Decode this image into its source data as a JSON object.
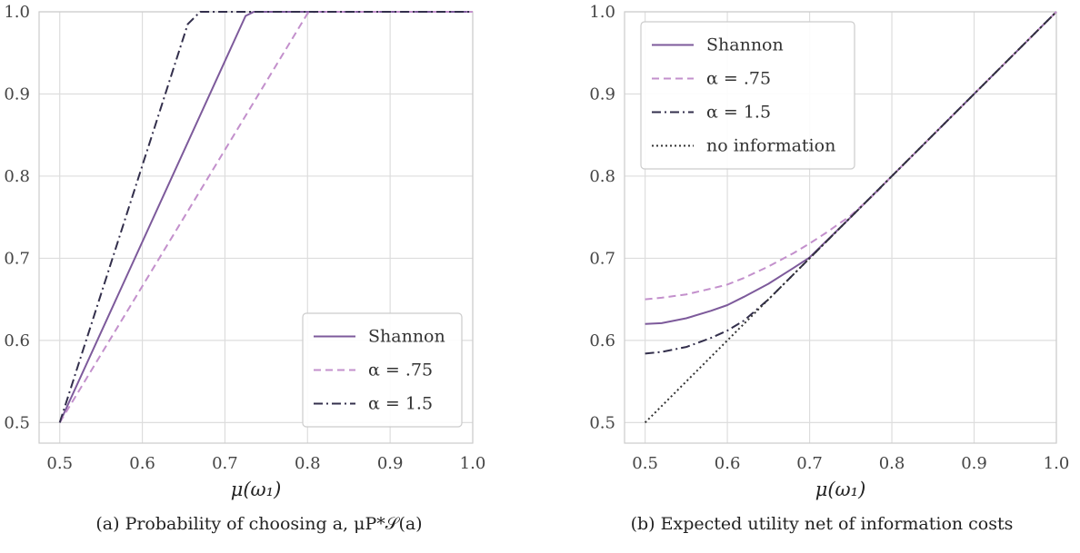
{
  "chart_data": [
    {
      "type": "line",
      "xlabel": "μ(ω₁)",
      "ylabel": "",
      "xlim": [
        0.475,
        1.0
      ],
      "ylim": [
        0.475,
        1.0
      ],
      "xticks": [
        "0.5",
        "0.6",
        "0.7",
        "0.8",
        "0.9",
        "1.0"
      ],
      "yticks": [
        "0.5",
        "0.6",
        "0.7",
        "0.8",
        "0.9",
        "1.0"
      ],
      "grid": true,
      "legend_position": "bottom-right",
      "caption": "(a) Probability of choosing a, μP*𝒮(a)",
      "series": [
        {
          "name": "Shannon",
          "style": "solid",
          "color": "#7d5a9b",
          "x": [
            0.5,
            0.725,
            0.735,
            0.75,
            1.0
          ],
          "y": [
            0.5,
            0.995,
            1.0,
            1.0,
            1.0
          ]
        },
        {
          "name": "α = .75",
          "style": "dashed",
          "color": "#c390cc",
          "x": [
            0.5,
            0.8,
            0.81,
            1.0
          ],
          "y": [
            0.5,
            0.998,
            1.0,
            1.0
          ]
        },
        {
          "name": "α = 1.5",
          "style": "dashdot",
          "color": "#332f4c",
          "x": [
            0.5,
            0.655,
            0.67,
            0.68,
            1.0
          ],
          "y": [
            0.5,
            0.985,
            1.0,
            1.0,
            1.0
          ]
        }
      ]
    },
    {
      "type": "line",
      "xlabel": "μ(ω₁)",
      "ylabel": "",
      "xlim": [
        0.475,
        1.0
      ],
      "ylim": [
        0.475,
        1.0
      ],
      "xticks": [
        "0.5",
        "0.6",
        "0.7",
        "0.8",
        "0.9",
        "1.0"
      ],
      "yticks": [
        "0.5",
        "0.6",
        "0.7",
        "0.8",
        "0.9",
        "1.0"
      ],
      "grid": true,
      "legend_position": "top-left",
      "caption": "(b) Expected utility net of information costs",
      "series": [
        {
          "name": "Shannon",
          "style": "solid",
          "color": "#7d5a9b",
          "x": [
            0.5,
            0.52,
            0.55,
            0.58,
            0.6,
            0.62,
            0.65,
            0.68,
            0.7,
            0.75,
            0.8,
            0.9,
            1.0
          ],
          "y": [
            0.62,
            0.621,
            0.627,
            0.636,
            0.643,
            0.653,
            0.669,
            0.688,
            0.701,
            0.75,
            0.8,
            0.9,
            1.0
          ]
        },
        {
          "name": "α = .75",
          "style": "dashed",
          "color": "#c390cc",
          "x": [
            0.5,
            0.52,
            0.55,
            0.58,
            0.6,
            0.62,
            0.65,
            0.68,
            0.7,
            0.72,
            0.75,
            0.78,
            0.8,
            0.9,
            1.0
          ],
          "y": [
            0.65,
            0.652,
            0.656,
            0.663,
            0.668,
            0.676,
            0.69,
            0.706,
            0.718,
            0.731,
            0.752,
            0.779,
            0.8,
            0.9,
            1.0
          ]
        },
        {
          "name": "α = 1.5",
          "style": "dashdot",
          "color": "#332f4c",
          "x": [
            0.5,
            0.52,
            0.55,
            0.58,
            0.6,
            0.62,
            0.65,
            0.68,
            0.7,
            0.8,
            0.9,
            1.0
          ],
          "y": [
            0.584,
            0.586,
            0.592,
            0.603,
            0.612,
            0.624,
            0.65,
            0.68,
            0.7,
            0.8,
            0.9,
            1.0
          ]
        },
        {
          "name": "no information",
          "style": "dotted",
          "color": "#333333",
          "x": [
            0.5,
            1.0
          ],
          "y": [
            0.5,
            1.0
          ]
        }
      ]
    }
  ]
}
